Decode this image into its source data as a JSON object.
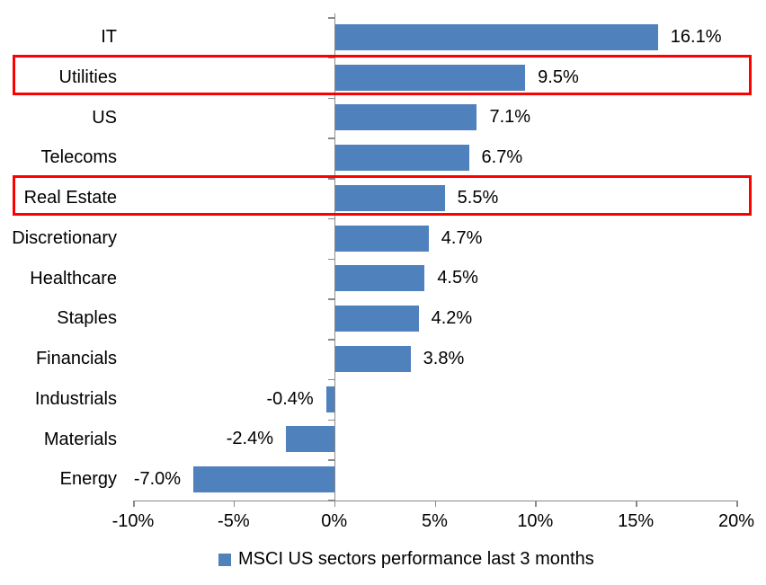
{
  "chart_data": {
    "type": "bar",
    "orientation": "horizontal",
    "title": "",
    "categories": [
      "IT",
      "Utilities",
      "US",
      "Telecoms",
      "Real Estate",
      "Discretionary",
      "Healthcare",
      "Staples",
      "Financials",
      "Industrials",
      "Materials",
      "Energy"
    ],
    "values": [
      16.1,
      9.5,
      7.1,
      6.7,
      5.5,
      4.7,
      4.5,
      4.2,
      3.8,
      -0.4,
      -2.4,
      -7.0
    ],
    "value_labels": [
      "16.1%",
      "9.5%",
      "7.1%",
      "6.7%",
      "5.5%",
      "4.7%",
      "4.5%",
      "4.2%",
      "3.8%",
      "-0.4%",
      "-2.4%",
      "-7.0%"
    ],
    "xlim": [
      -10,
      20
    ],
    "x_ticks": [
      -10,
      -5,
      0,
      5,
      10,
      15,
      20
    ],
    "x_tick_labels": [
      "-10%",
      "-5%",
      "0%",
      "5%",
      "10%",
      "15%",
      "20%"
    ],
    "grid": false,
    "highlighted_categories": [
      "Utilities",
      "Real Estate"
    ],
    "legend": {
      "position": "bottom",
      "label": "MSCI US sectors performance last 3 months"
    },
    "colors": {
      "bar": "#4F81BD",
      "highlight_box": "#FF0000",
      "axis": "#898989",
      "text": "#000000",
      "background": "#FFFFFF"
    }
  }
}
